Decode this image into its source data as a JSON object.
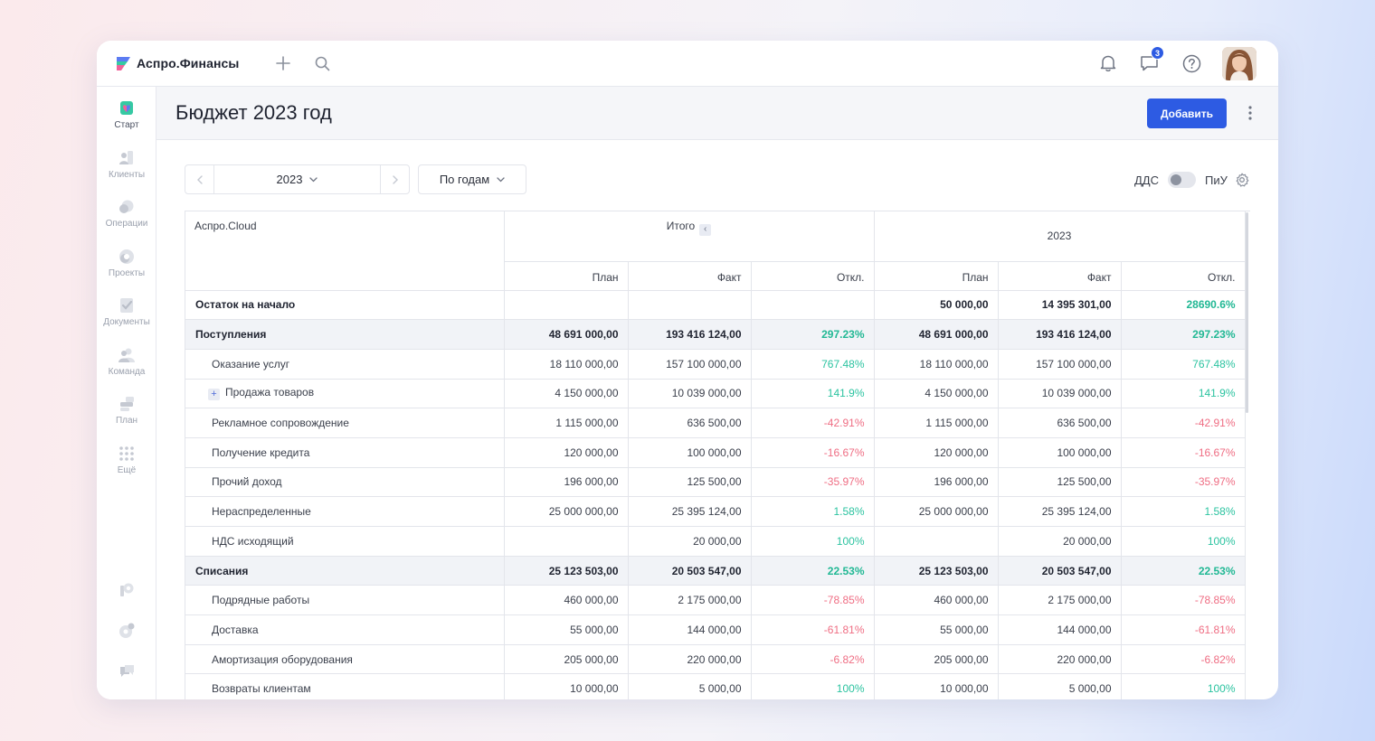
{
  "app": {
    "name": "Аспро.Финансы",
    "notifications_badge": "3"
  },
  "sidebar": {
    "items": [
      {
        "label": "Старт",
        "icon": "start-icon"
      },
      {
        "label": "Клиенты",
        "icon": "clients-icon"
      },
      {
        "label": "Операции",
        "icon": "operations-icon"
      },
      {
        "label": "Проекты",
        "icon": "projects-icon"
      },
      {
        "label": "Документы",
        "icon": "documents-icon"
      },
      {
        "label": "Команда",
        "icon": "team-icon"
      },
      {
        "label": "План",
        "icon": "plan-icon"
      },
      {
        "label": "Ещё",
        "icon": "more-grid-icon"
      }
    ]
  },
  "page": {
    "title": "Бюджет 2023 год",
    "add_button": "Добавить"
  },
  "filters": {
    "year": "2023",
    "period": "По годам",
    "toggle_left": "ДДС",
    "toggle_right": "ПиУ",
    "toggle_on": false
  },
  "table": {
    "company": "Аспро.Cloud",
    "groups": [
      "Итого",
      "2023"
    ],
    "subheaders": [
      "План",
      "Факт",
      "Откл."
    ],
    "rows": [
      {
        "name": "Остаток на начало",
        "type": "bold",
        "cells": [
          "",
          "",
          "",
          "50 000,00",
          "14 395 301,00",
          "28690.6%"
        ],
        "signs": [
          "",
          "",
          "",
          "",
          "",
          "pos"
        ]
      },
      {
        "name": "Поступления",
        "type": "group",
        "cells": [
          "48 691 000,00",
          "193 416 124,00",
          "297.23%",
          "48 691 000,00",
          "193 416 124,00",
          "297.23%"
        ],
        "signs": [
          "",
          "",
          "pos",
          "",
          "",
          "pos"
        ]
      },
      {
        "name": "Оказание услуг",
        "type": "child",
        "cells": [
          "18 110 000,00",
          "157 100 000,00",
          "767.48%",
          "18 110 000,00",
          "157 100 000,00",
          "767.48%"
        ],
        "signs": [
          "",
          "",
          "pos",
          "",
          "",
          "pos"
        ]
      },
      {
        "name": "Продажа товаров",
        "type": "child-expand",
        "cells": [
          "4 150 000,00",
          "10 039 000,00",
          "141.9%",
          "4 150 000,00",
          "10 039 000,00",
          "141.9%"
        ],
        "signs": [
          "",
          "",
          "pos",
          "",
          "",
          "pos"
        ]
      },
      {
        "name": "Рекламное сопровождение",
        "type": "child",
        "cells": [
          "1 115 000,00",
          "636 500,00",
          "-42.91%",
          "1 115 000,00",
          "636 500,00",
          "-42.91%"
        ],
        "signs": [
          "",
          "",
          "neg",
          "",
          "",
          "neg"
        ]
      },
      {
        "name": "Получение кредита",
        "type": "child",
        "cells": [
          "120 000,00",
          "100 000,00",
          "-16.67%",
          "120 000,00",
          "100 000,00",
          "-16.67%"
        ],
        "signs": [
          "",
          "",
          "neg",
          "",
          "",
          "neg"
        ]
      },
      {
        "name": "Прочий доход",
        "type": "child",
        "cells": [
          "196 000,00",
          "125 500,00",
          "-35.97%",
          "196 000,00",
          "125 500,00",
          "-35.97%"
        ],
        "signs": [
          "",
          "",
          "neg",
          "",
          "",
          "neg"
        ]
      },
      {
        "name": "Нераспределенные",
        "type": "child",
        "cells": [
          "25 000 000,00",
          "25 395 124,00",
          "1.58%",
          "25 000 000,00",
          "25 395 124,00",
          "1.58%"
        ],
        "signs": [
          "",
          "",
          "pos",
          "",
          "",
          "pos"
        ]
      },
      {
        "name": "НДС исходящий",
        "type": "child",
        "cells": [
          "",
          "20 000,00",
          "100%",
          "",
          "20 000,00",
          "100%"
        ],
        "signs": [
          "",
          "",
          "pos",
          "",
          "",
          "pos"
        ]
      },
      {
        "name": "Списания",
        "type": "group",
        "cells": [
          "25 123 503,00",
          "20 503 547,00",
          "22.53%",
          "25 123 503,00",
          "20 503 547,00",
          "22.53%"
        ],
        "signs": [
          "",
          "",
          "pos",
          "",
          "",
          "pos"
        ]
      },
      {
        "name": "Подрядные работы",
        "type": "child",
        "cells": [
          "460 000,00",
          "2 175 000,00",
          "-78.85%",
          "460 000,00",
          "2 175 000,00",
          "-78.85%"
        ],
        "signs": [
          "",
          "",
          "neg",
          "",
          "",
          "neg"
        ]
      },
      {
        "name": "Доставка",
        "type": "child",
        "cells": [
          "55 000,00",
          "144 000,00",
          "-61.81%",
          "55 000,00",
          "144 000,00",
          "-61.81%"
        ],
        "signs": [
          "",
          "",
          "neg",
          "",
          "",
          "neg"
        ]
      },
      {
        "name": "Амортизация оборудования",
        "type": "child",
        "cells": [
          "205 000,00",
          "220 000,00",
          "-6.82%",
          "205 000,00",
          "220 000,00",
          "-6.82%"
        ],
        "signs": [
          "",
          "",
          "neg",
          "",
          "",
          "neg"
        ]
      },
      {
        "name": "Возвраты клиентам",
        "type": "child",
        "cells": [
          "10 000,00",
          "5 000,00",
          "100%",
          "10 000,00",
          "5 000,00",
          "100%"
        ],
        "signs": [
          "",
          "",
          "pos",
          "",
          "",
          "pos"
        ]
      }
    ]
  },
  "colors": {
    "accent": "#2d5be3",
    "positive": "#2bc3a0",
    "negative": "#ef6d83"
  }
}
